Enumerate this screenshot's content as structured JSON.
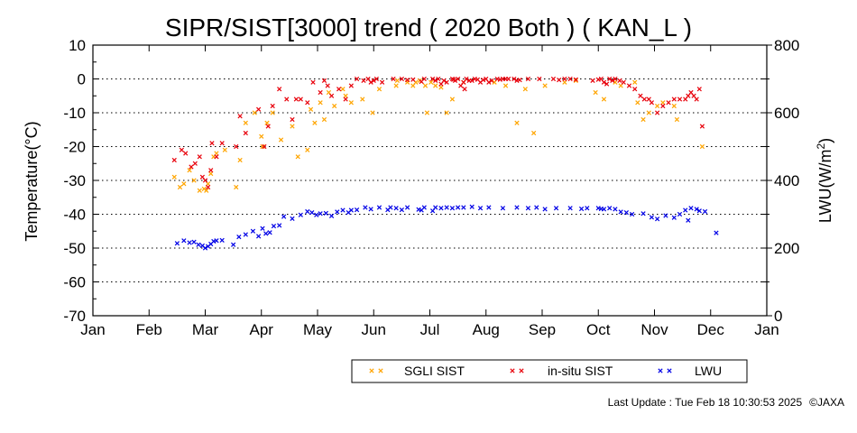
{
  "chart_data": {
    "type": "scatter",
    "title": "SIPR/SIST[3000] trend ( 2020 Both ) ( KAN_L )",
    "xlabel": "",
    "ylabel": "Temperature(°C)",
    "y2label": "LWU(W/m²)",
    "x_ticks": [
      "Jan",
      "Feb",
      "Mar",
      "Apr",
      "May",
      "Jun",
      "Jul",
      "Aug",
      "Sep",
      "Oct",
      "Nov",
      "Dec",
      "Jan"
    ],
    "ylim": [
      -70,
      10
    ],
    "y_ticks": [
      10,
      0,
      -10,
      -20,
      -30,
      -40,
      -50,
      -60,
      -70
    ],
    "y2lim": [
      0,
      800
    ],
    "y2_ticks": [
      800,
      600,
      400,
      200,
      0
    ],
    "grid": "horizontal dotted",
    "legend": "bottom-center",
    "x_unit": "month (0 = Jan 1, 12 = next Jan 1)",
    "series": [
      {
        "name": "SGLI SIST",
        "axis": "left",
        "color": "#ffa500",
        "x": [
          1.45,
          1.55,
          1.62,
          1.72,
          1.8,
          1.9,
          1.98,
          2.02,
          2.05,
          2.1,
          2.15,
          2.2,
          2.35,
          2.55,
          2.62,
          2.72,
          2.88,
          3.0,
          3.02,
          3.1,
          3.2,
          3.35,
          3.55,
          3.65,
          3.82,
          3.88,
          3.95,
          4.05,
          4.12,
          4.2,
          4.3,
          4.45,
          4.5,
          4.6,
          4.8,
          4.98,
          5.1,
          5.4,
          5.42,
          5.6,
          5.7,
          5.75,
          5.82,
          5.92,
          5.95,
          6.02,
          6.1,
          6.2,
          6.3,
          6.4,
          6.6,
          7.15,
          7.35,
          7.55,
          7.7,
          7.85,
          8.05,
          8.4,
          8.6,
          8.95,
          9.1,
          9.3,
          9.4,
          9.65,
          9.7,
          9.8,
          9.9,
          10.05,
          10.15,
          10.35,
          10.4,
          10.85
        ],
        "y": [
          -29,
          -32,
          -31,
          -27,
          -30,
          -33,
          -32.5,
          -33,
          -31,
          -28,
          -23,
          -22,
          -21,
          -32,
          -24,
          -13,
          -10,
          -17,
          -20,
          -13,
          -10,
          -18,
          -14,
          -23,
          -21,
          -9,
          -13,
          -7,
          -12,
          -4,
          -8,
          -3,
          -5,
          -7,
          -6,
          -10,
          -3,
          -2,
          -0.5,
          -1,
          -2,
          -1,
          -0.5,
          -2,
          -10,
          -1,
          -2,
          -2.5,
          -10,
          -6,
          -1,
          -1,
          -2,
          -13,
          -3,
          -16,
          -2,
          -1,
          -0.5,
          -4,
          -6,
          -1,
          -2,
          -1,
          -7,
          -12,
          -10,
          -8,
          -7,
          -8,
          -12,
          -20
        ]
      },
      {
        "name": "in-situ SIST",
        "axis": "left",
        "color": "#e8000b",
        "x": [
          1.45,
          1.58,
          1.65,
          1.75,
          1.82,
          1.9,
          1.95,
          2.0,
          2.05,
          2.1,
          2.12,
          2.2,
          2.3,
          2.55,
          2.62,
          2.72,
          2.95,
          3.05,
          3.12,
          3.2,
          3.32,
          3.45,
          3.55,
          3.62,
          3.7,
          3.82,
          3.92,
          4.05,
          4.12,
          4.18,
          4.25,
          4.38,
          4.5,
          4.6,
          4.7,
          4.82,
          4.9,
          4.95,
          5.0,
          5.05,
          5.15,
          5.35,
          5.5,
          5.6,
          5.7,
          5.85,
          5.9,
          6.05,
          6.1,
          6.15,
          6.2,
          6.25,
          6.3,
          6.4,
          6.42,
          6.45,
          6.5,
          6.55,
          6.6,
          6.62,
          6.65,
          6.7,
          6.75,
          6.8,
          6.85,
          6.9,
          6.95,
          7.0,
          7.05,
          7.1,
          7.2,
          7.25,
          7.3,
          7.35,
          7.4,
          7.5,
          7.55,
          7.6,
          7.75,
          7.95,
          8.2,
          8.3,
          8.4,
          8.5,
          8.6,
          8.9,
          9.0,
          9.05,
          9.1,
          9.15,
          9.2,
          9.25,
          9.3,
          9.38,
          9.45,
          9.55,
          9.65,
          9.75,
          9.82,
          9.9,
          9.95,
          10.05,
          10.15,
          10.25,
          10.35,
          10.45,
          10.55,
          10.6,
          10.65,
          10.7,
          10.75,
          10.8,
          10.85
        ],
        "y": [
          -24,
          -21,
          -22,
          -26,
          -25,
          -23,
          -29,
          -30,
          -32,
          -27,
          -19,
          -23,
          -19,
          -20,
          -11,
          -16,
          -9,
          -20,
          -14,
          -8,
          -3,
          -6,
          -12,
          -6,
          -6,
          -7,
          -1,
          -4,
          -0.5,
          -2,
          -5,
          -3,
          -6,
          -2,
          0,
          -0.5,
          0,
          -1,
          -0.5,
          0,
          -1,
          0,
          0,
          -0.3,
          -0.2,
          -0.8,
          0,
          0,
          -0.5,
          0,
          -1.5,
          -0.5,
          -1,
          0,
          -0.2,
          -0.5,
          0,
          -2,
          -1,
          -3,
          0,
          -0.5,
          -0.5,
          0,
          -0.2,
          -1,
          -0.3,
          0,
          -1,
          -0.5,
          0,
          -0.2,
          0,
          0,
          0,
          0,
          -0.5,
          -0.3,
          0,
          0,
          0,
          -0.3,
          0,
          0,
          -0.2,
          -0.5,
          -0.2,
          0,
          -1,
          -1.5,
          0,
          -0.5,
          0,
          -0.5,
          -1,
          -2,
          -3,
          -5,
          -6,
          -6,
          -7,
          -10,
          -8,
          -7,
          -6,
          -6,
          -6,
          -5,
          -4,
          -5,
          -6,
          -3,
          -14
        ]
      },
      {
        "name": "LWU",
        "axis": "right",
        "color": "#0000e6",
        "x": [
          1.5,
          1.62,
          1.72,
          1.8,
          1.88,
          1.95,
          2.0,
          2.05,
          2.1,
          2.15,
          2.2,
          2.3,
          2.5,
          2.6,
          2.72,
          2.85,
          2.95,
          3.02,
          3.08,
          3.15,
          3.22,
          3.32,
          3.4,
          3.55,
          3.7,
          3.82,
          3.9,
          3.98,
          4.05,
          4.15,
          4.25,
          4.35,
          4.45,
          4.55,
          4.6,
          4.7,
          4.85,
          4.95,
          5.1,
          5.25,
          5.3,
          5.4,
          5.5,
          5.6,
          5.8,
          5.85,
          5.9,
          6.05,
          6.1,
          6.2,
          6.3,
          6.4,
          6.5,
          6.6,
          6.75,
          6.9,
          7.05,
          7.3,
          7.55,
          7.75,
          7.9,
          8.05,
          8.25,
          8.5,
          8.7,
          8.8,
          9.0,
          9.05,
          9.1,
          9.2,
          9.3,
          9.4,
          9.5,
          9.6,
          9.8,
          9.95,
          10.05,
          10.2,
          10.35,
          10.45,
          10.55,
          10.6,
          10.65,
          10.75,
          10.8,
          10.9,
          11.1
        ],
        "y": [
          214,
          222,
          216,
          218,
          210,
          207,
          200,
          205,
          212,
          220,
          222,
          223,
          210,
          233,
          240,
          250,
          235,
          258,
          243,
          246,
          265,
          267,
          293,
          287,
          298,
          308,
          305,
          298,
          302,
          303,
          295,
          307,
          312,
          305,
          312,
          313,
          320,
          315,
          320,
          313,
          320,
          318,
          313,
          320,
          314,
          312,
          320,
          310,
          320,
          318,
          320,
          318,
          320,
          320,
          322,
          318,
          320,
          318,
          320,
          318,
          320,
          315,
          318,
          318,
          316,
          318,
          318,
          316,
          315,
          318,
          315,
          307,
          305,
          300,
          302,
          291,
          286,
          296,
          290,
          300,
          312,
          282,
          318,
          315,
          310,
          308,
          245
        ]
      }
    ]
  },
  "footer": {
    "last_update": "Last Update : Tue Feb 18 10:30:53 2025",
    "copyright": "©JAXA"
  }
}
